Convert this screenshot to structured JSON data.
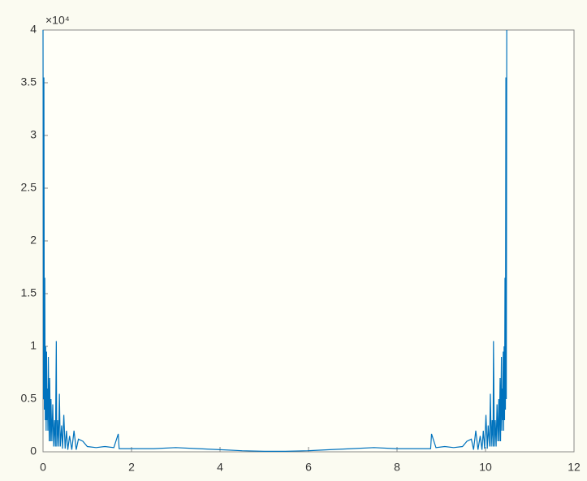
{
  "chart_data": {
    "type": "line",
    "axis_multiplier": "×10⁴",
    "x": [
      0,
      0.01,
      0.02,
      0.03,
      0.04,
      0.05,
      0.06,
      0.07,
      0.08,
      0.09,
      0.1,
      0.11,
      0.12,
      0.14,
      0.15,
      0.17,
      0.18,
      0.2,
      0.22,
      0.24,
      0.26,
      0.28,
      0.3,
      0.31,
      0.33,
      0.35,
      0.37,
      0.39,
      0.42,
      0.44,
      0.47,
      0.5,
      0.53,
      0.56,
      0.6,
      0.65,
      0.7,
      0.75,
      0.8,
      0.9,
      1.0,
      1.2,
      1.4,
      1.6,
      1.7,
      1.72,
      2.0,
      2.5,
      3.0,
      3.5,
      4.0,
      4.5,
      5.0,
      5.48,
      5.98,
      6.48,
      6.98,
      7.48,
      7.98,
      8.48,
      8.76,
      8.78,
      8.88,
      9.08,
      9.28,
      9.48,
      9.58,
      9.68,
      9.73,
      9.78,
      9.83,
      9.88,
      9.92,
      9.95,
      9.98,
      10.01,
      10.04,
      10.06,
      10.09,
      10.11,
      10.13,
      10.15,
      10.17,
      10.18,
      10.2,
      10.22,
      10.24,
      10.26,
      10.28,
      10.3,
      10.31,
      10.33,
      10.34,
      10.36,
      10.37,
      10.38,
      10.39,
      10.4,
      10.41,
      10.42,
      10.43,
      10.44,
      10.45,
      10.46,
      10.47,
      10.48
    ],
    "series": [
      {
        "color": "#0072bd",
        "values": [
          4.0,
          0.5,
          3.55,
          0.4,
          1.65,
          0.3,
          1.0,
          0.2,
          0.95,
          0.3,
          0.6,
          0.2,
          0.9,
          0.1,
          0.7,
          0.1,
          0.5,
          0.1,
          0.45,
          0.05,
          0.3,
          0.05,
          1.05,
          0.05,
          0.3,
          0.05,
          0.55,
          0.05,
          0.25,
          0.03,
          0.35,
          0.03,
          0.2,
          0.02,
          0.15,
          0.02,
          0.2,
          0.02,
          0.12,
          0.1,
          0.05,
          0.04,
          0.05,
          0.04,
          0.17,
          0.03,
          0.03,
          0.03,
          0.04,
          0.03,
          0.02,
          0.01,
          0.005,
          0.005,
          0.01,
          0.02,
          0.03,
          0.04,
          0.03,
          0.03,
          0.03,
          0.17,
          0.04,
          0.05,
          0.04,
          0.05,
          0.1,
          0.12,
          0.02,
          0.2,
          0.02,
          0.15,
          0.02,
          0.2,
          0.03,
          0.35,
          0.03,
          0.25,
          0.05,
          0.55,
          0.05,
          0.3,
          0.05,
          1.05,
          0.05,
          0.3,
          0.05,
          0.45,
          0.1,
          0.5,
          0.1,
          0.7,
          0.1,
          0.9,
          0.2,
          0.6,
          0.3,
          0.95,
          0.2,
          1.0,
          0.3,
          1.65,
          0.4,
          3.55,
          0.5,
          4.0
        ]
      }
    ],
    "xlim": [
      0,
      12
    ],
    "xticks": [
      0,
      2,
      4,
      6,
      8,
      10,
      12
    ],
    "ylim": [
      0,
      4
    ],
    "yticks": [
      0,
      0.5,
      1,
      1.5,
      2,
      2.5,
      3,
      3.5,
      4
    ]
  }
}
